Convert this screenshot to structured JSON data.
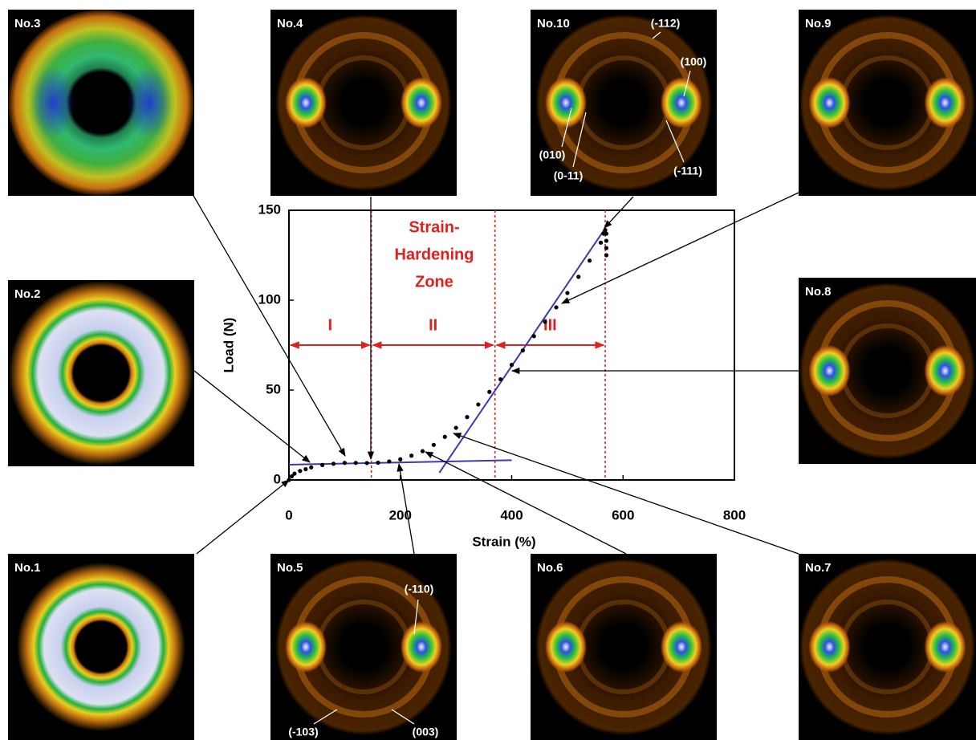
{
  "chart_data": {
    "type": "scatter",
    "x_label": "Strain (%)",
    "y_label": "Load (N)",
    "xlim": [
      0,
      800
    ],
    "xticks": [
      0,
      200,
      400,
      600,
      800
    ],
    "ylim": [
      0,
      150
    ],
    "yticks": [
      0,
      50,
      100,
      150
    ],
    "color": "#000000",
    "x": [
      0,
      5,
      10,
      20,
      30,
      40,
      60,
      80,
      100,
      120,
      140,
      160,
      180,
      200,
      220,
      240,
      260,
      280,
      300,
      320,
      340,
      360,
      380,
      400,
      420,
      440,
      460,
      480,
      500,
      520,
      540,
      560,
      565,
      568,
      570,
      570,
      570,
      570
    ],
    "values": [
      0,
      2,
      3.5,
      5,
      6,
      7,
      8.3,
      9,
      9.5,
      9.5,
      9.4,
      9.6,
      10.3,
      11.5,
      13.5,
      16,
      19.5,
      24,
      29,
      35,
      42,
      49,
      56,
      64,
      72,
      80,
      88,
      96,
      104,
      113,
      122,
      132,
      137,
      139,
      137,
      133,
      129,
      125
    ],
    "fit_lines": [
      {
        "color": "#3b3bb0",
        "x": [
          0,
          400
        ],
        "y": [
          8.5,
          11
        ]
      },
      {
        "color": "#3b3bb0",
        "x": [
          270,
          568
        ],
        "y": [
          4,
          140
        ]
      }
    ],
    "zone_bounds": [
      148,
      370,
      568
    ],
    "zone_color": "#e0201c",
    "zone_arrow_y": 75,
    "zones": [
      "I",
      "II",
      "III"
    ],
    "annotation": [
      "Strain-",
      "Hardening",
      "Zone"
    ],
    "panels": [
      {
        "label": "No.1",
        "annotations": []
      },
      {
        "label": "No.2",
        "annotations": []
      },
      {
        "label": "No.3",
        "annotations": []
      },
      {
        "label": "No.4",
        "annotations": []
      },
      {
        "label": "No.5",
        "annotations": [
          "(-110)",
          "(-103)",
          "(003)"
        ]
      },
      {
        "label": "No.6",
        "annotations": []
      },
      {
        "label": "No.7",
        "annotations": []
      },
      {
        "label": "No.8",
        "annotations": []
      },
      {
        "label": "No.9",
        "annotations": []
      },
      {
        "label": "No.10",
        "annotations": [
          "(-112)",
          "(100)",
          "(010)",
          "(0-11)",
          "(-111)"
        ]
      }
    ]
  }
}
